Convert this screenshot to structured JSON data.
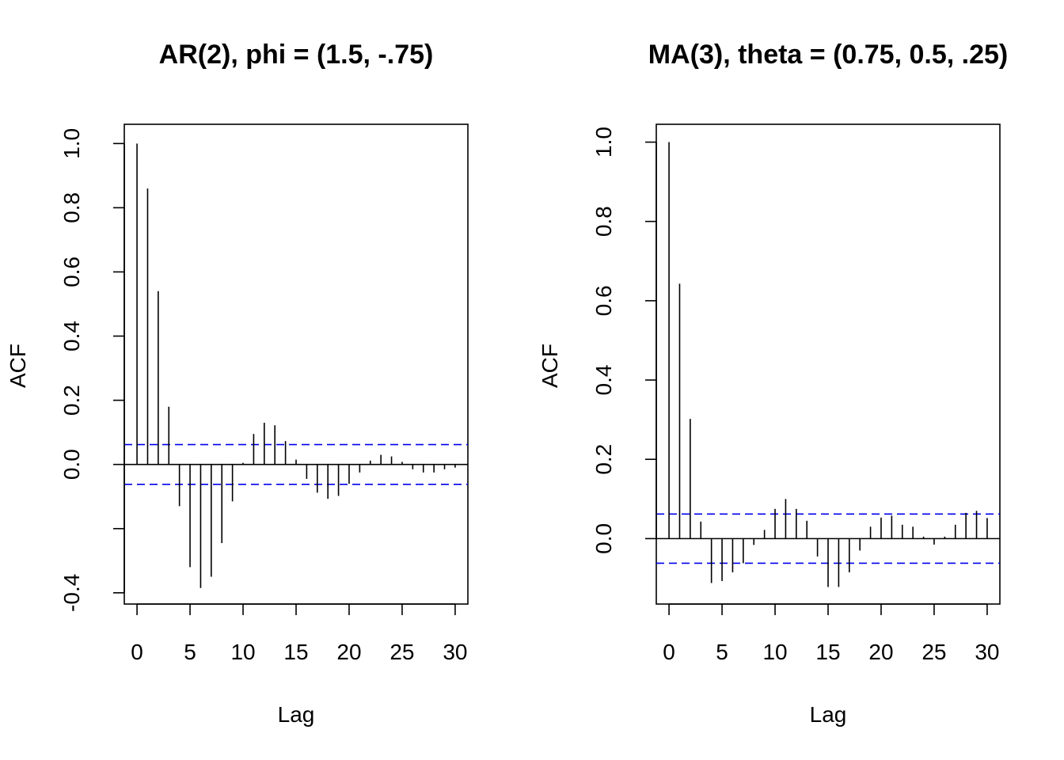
{
  "chart_data": [
    {
      "type": "bar",
      "subtype": "acf-correlogram",
      "title": "AR(2), phi = (1.5, -.75)",
      "xlabel": "Lag",
      "ylabel": "ACF",
      "xlim": [
        -1.2,
        31.2
      ],
      "ylim": [
        -0.435,
        1.06
      ],
      "xticks": [
        0,
        5,
        10,
        15,
        20,
        25,
        30
      ],
      "yticks": [
        -0.4,
        -0.2,
        0.0,
        0.2,
        0.4,
        0.6,
        0.8,
        1.0
      ],
      "ytick_labels": [
        "-0.4",
        "",
        "0.0",
        "0.2",
        "0.4",
        "0.6",
        "0.8",
        "1.0"
      ],
      "ci": 0.062,
      "ci_color": "#0000ee",
      "lags": [
        0,
        1,
        2,
        3,
        4,
        5,
        6,
        7,
        8,
        9,
        10,
        11,
        12,
        13,
        14,
        15,
        16,
        17,
        18,
        19,
        20,
        21,
        22,
        23,
        24,
        25,
        26,
        27,
        28,
        29,
        30
      ],
      "values": [
        1.0,
        0.86,
        0.54,
        0.18,
        -0.13,
        -0.32,
        -0.385,
        -0.35,
        -0.245,
        -0.115,
        0.005,
        0.095,
        0.13,
        0.122,
        0.073,
        0.015,
        -0.045,
        -0.088,
        -0.107,
        -0.098,
        -0.06,
        -0.025,
        0.012,
        0.03,
        0.025,
        0.008,
        -0.015,
        -0.025,
        -0.025,
        -0.015,
        -0.01
      ]
    },
    {
      "type": "bar",
      "subtype": "acf-correlogram",
      "title": "MA(3), theta = (0.75, 0.5, .25)",
      "xlabel": "Lag",
      "ylabel": "ACF",
      "xlim": [
        -1.2,
        31.2
      ],
      "ylim": [
        -0.165,
        1.045
      ],
      "xticks": [
        0,
        5,
        10,
        15,
        20,
        25,
        30
      ],
      "yticks": [
        0.0,
        0.2,
        0.4,
        0.6,
        0.8,
        1.0
      ],
      "ytick_labels": [
        "0.0",
        "0.2",
        "0.4",
        "0.6",
        "0.8",
        "1.0"
      ],
      "ci": 0.062,
      "ci_color": "#0000ee",
      "lags": [
        0,
        1,
        2,
        3,
        4,
        5,
        6,
        7,
        8,
        9,
        10,
        11,
        12,
        13,
        14,
        15,
        16,
        17,
        18,
        19,
        20,
        21,
        22,
        23,
        24,
        25,
        26,
        27,
        28,
        29,
        30
      ],
      "values": [
        1.0,
        0.643,
        0.302,
        0.043,
        -0.112,
        -0.107,
        -0.085,
        -0.062,
        -0.016,
        0.022,
        0.075,
        0.1,
        0.075,
        0.045,
        -0.045,
        -0.122,
        -0.122,
        -0.085,
        -0.03,
        0.03,
        0.053,
        0.058,
        0.035,
        0.03,
        0.005,
        -0.015,
        0.005,
        0.035,
        0.065,
        0.07,
        0.052
      ]
    }
  ]
}
